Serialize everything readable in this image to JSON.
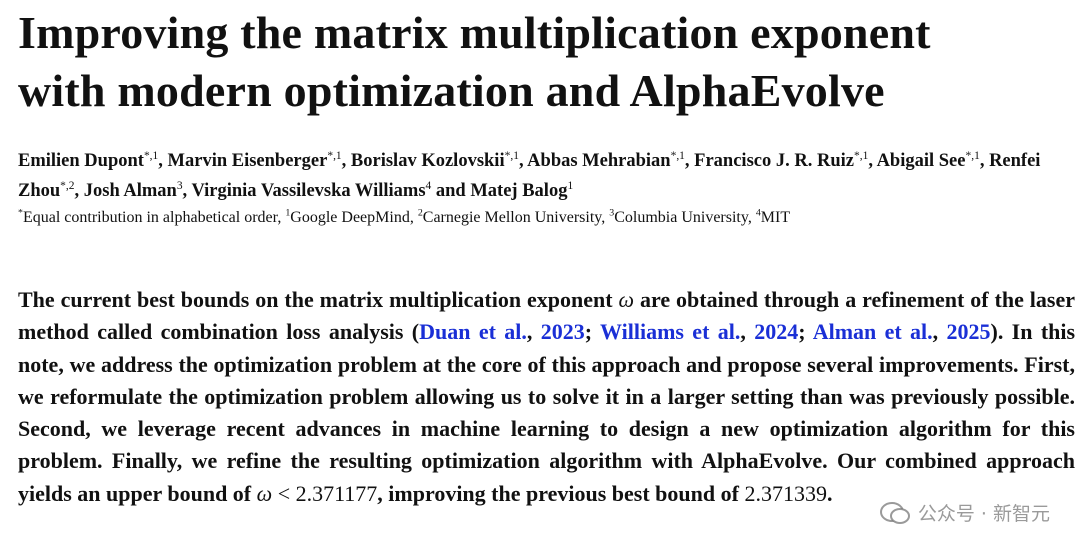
{
  "title": [
    "Improving the matrix multiplication exponent",
    "with modern optimization and AlphaEvolve"
  ],
  "authors": [
    {
      "name": "Emilien Dupont",
      "sup": "*,1",
      "sep": ", "
    },
    {
      "name": "Marvin Eisenberger",
      "sup": "*,1",
      "sep": ", "
    },
    {
      "name": "Borislav Kozlovskii",
      "sup": "*,1",
      "sep": ", "
    },
    {
      "name": "Abbas Mehrabian",
      "sup": "*,1",
      "sep": ", "
    },
    {
      "name": "Francisco J. R. Ruiz",
      "sup": "*,1",
      "sep": ", "
    },
    {
      "name": "Abigail See",
      "sup": "*,1",
      "sep": ", "
    },
    {
      "name": "Renfei Zhou",
      "sup": "*,2",
      "sep": ", "
    },
    {
      "name": "Josh Alman",
      "sup": "3",
      "sep": ", "
    },
    {
      "name": "Virginia Vassilevska Williams",
      "sup": "4",
      "sep": " and "
    },
    {
      "name": "Matej Balog",
      "sup": "1"
    }
  ],
  "affiliations": [
    {
      "sup": "*",
      "text": "Equal contribution in alphabetical order, "
    },
    {
      "sup": "1",
      "text": "Google DeepMind, "
    },
    {
      "sup": "2",
      "text": "Carnegie Mellon University, "
    },
    {
      "sup": "3",
      "text": "Columbia University, "
    },
    {
      "sup": "4",
      "text": "MIT"
    }
  ],
  "abstract": [
    {
      "text": "The current best bounds on the matrix multiplication exponent ",
      "style": "bold"
    },
    {
      "text": "ω",
      "style": "math"
    },
    {
      "text": " are obtained through a refinement of the laser method called combination loss analysis (",
      "style": "bold"
    },
    {
      "text": "Duan et al.",
      "style": "link"
    },
    {
      "text": ", ",
      "style": "bold"
    },
    {
      "text": "2023",
      "style": "link"
    },
    {
      "text": "; ",
      "style": "bold"
    },
    {
      "text": "Williams et al.",
      "style": "link"
    },
    {
      "text": ", ",
      "style": "bold"
    },
    {
      "text": "2024",
      "style": "link"
    },
    {
      "text": "; ",
      "style": "bold"
    },
    {
      "text": "Alman et al.",
      "style": "link"
    },
    {
      "text": ", ",
      "style": "bold"
    },
    {
      "text": "2025",
      "style": "link"
    },
    {
      "text": "). In this note, we address the optimization problem at the core of this approach and propose several improvements. First, we reformulate the optimization problem allowing us to solve it in a larger setting than was previously possible. Second, we leverage recent advances in machine learning to design a new optimization algorithm for this problem. Finally, we refine the resulting optimization algorithm with AlphaEvolve. Our combined approach yields an upper bound of ",
      "style": "bold"
    },
    {
      "text": "ω",
      "style": "math"
    },
    {
      "text": " < 2.371177",
      "style": "plain"
    },
    {
      "text": ", improving the previous best bound of ",
      "style": "bold"
    },
    {
      "text": "2.371339",
      "style": "plain"
    },
    {
      "text": ".",
      "style": "bold"
    }
  ],
  "watermark": "公众号 · 新智元"
}
